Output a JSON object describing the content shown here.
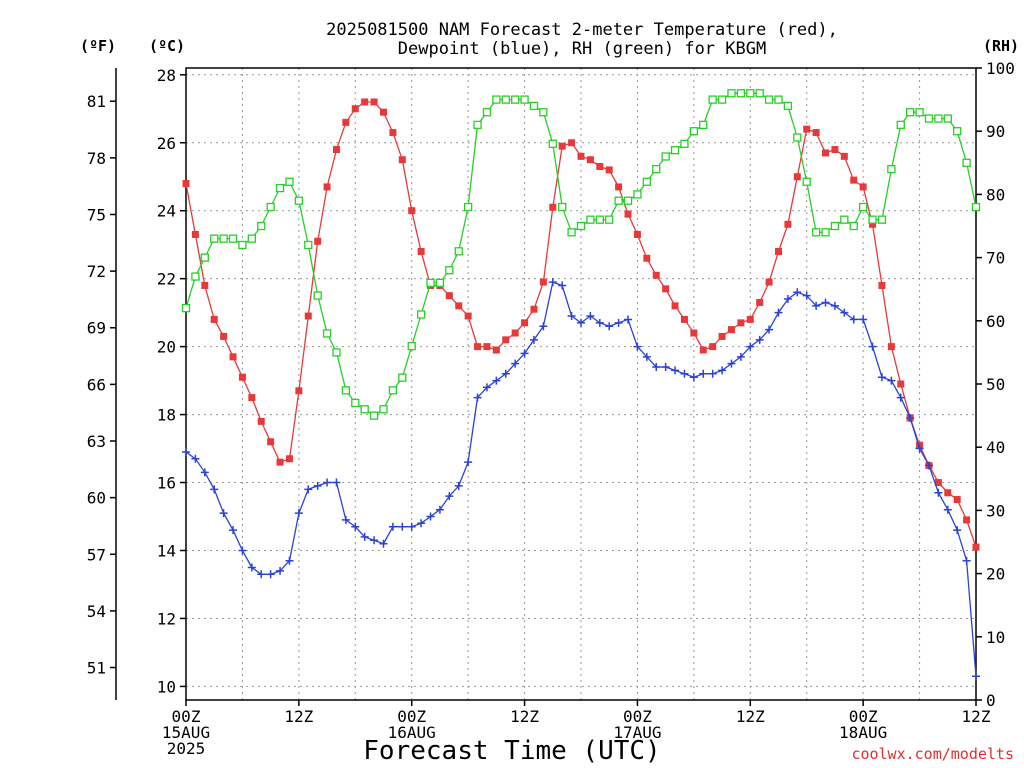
{
  "chart_data": {
    "type": "line",
    "title_lines": [
      "2025081500 NAM Forecast 2-meter Temperature (red),",
      "Dewpoint (blue), RH (green) for KBGM"
    ],
    "xlabel": "Forecast Time (UTC)",
    "credit": "coolwx.com/modelts",
    "unit_labels": {
      "fahrenheit": "(ºF)",
      "celsius": "(ºC)",
      "rh": "(RH)"
    },
    "x_range_hours": [
      0,
      84
    ],
    "x_ticks": [
      {
        "hour": 0,
        "lines": [
          "00Z",
          "15AUG",
          "2025"
        ]
      },
      {
        "hour": 12,
        "lines": [
          "12Z"
        ]
      },
      {
        "hour": 24,
        "lines": [
          "00Z",
          "16AUG"
        ]
      },
      {
        "hour": 36,
        "lines": [
          "12Z"
        ]
      },
      {
        "hour": 48,
        "lines": [
          "00Z",
          "17AUG"
        ]
      },
      {
        "hour": 60,
        "lines": [
          "12Z"
        ]
      },
      {
        "hour": 72,
        "lines": [
          "00Z",
          "18AUG"
        ]
      },
      {
        "hour": 84,
        "lines": [
          "12Z"
        ]
      }
    ],
    "celsius_range": [
      9.6,
      28.2
    ],
    "celsius_ticks": [
      "10",
      "12",
      "14",
      "16",
      "18",
      "20",
      "22",
      "24",
      "26",
      "28"
    ],
    "fahrenheit_ticks": [
      "51",
      "54",
      "57",
      "60",
      "63",
      "66",
      "69",
      "72",
      "75",
      "78",
      "81"
    ],
    "rh_range": [
      0,
      100
    ],
    "rh_ticks": [
      "0",
      "10",
      "20",
      "30",
      "40",
      "50",
      "60",
      "70",
      "80",
      "90",
      "100"
    ],
    "grid": true,
    "series": [
      {
        "name": "Temperature",
        "color": "#e8393a",
        "marker": "filled-square",
        "axis": "celsius",
        "hours": [
          0,
          1,
          2,
          3,
          4,
          5,
          6,
          7,
          8,
          9,
          10,
          11,
          12,
          13,
          14,
          15,
          16,
          17,
          18,
          19,
          20,
          21,
          22,
          23,
          24,
          25,
          26,
          27,
          28,
          29,
          30,
          31,
          32,
          33,
          34,
          35,
          36,
          37,
          38,
          39,
          40,
          41,
          42,
          43,
          44,
          45,
          46,
          47,
          48,
          49,
          50,
          51,
          52,
          53,
          54,
          55,
          56,
          57,
          58,
          59,
          60,
          61,
          62,
          63,
          64,
          65,
          66,
          67,
          68,
          69,
          70,
          71,
          72,
          73,
          74,
          75,
          76,
          77,
          78,
          79,
          80,
          81,
          82,
          83,
          84
        ],
        "values": [
          24.8,
          23.3,
          21.8,
          20.8,
          20.3,
          19.7,
          19.1,
          18.5,
          17.8,
          17.2,
          16.6,
          16.7,
          18.7,
          20.9,
          23.1,
          24.7,
          25.8,
          26.6,
          27.0,
          27.2,
          27.2,
          26.9,
          26.3,
          25.5,
          24.0,
          22.8,
          21.8,
          21.8,
          21.5,
          21.2,
          20.9,
          20.0,
          20.0,
          19.9,
          20.2,
          20.4,
          20.7,
          21.1,
          21.9,
          24.1,
          25.9,
          26.0,
          25.6,
          25.5,
          25.3,
          25.2,
          24.7,
          23.9,
          23.3,
          22.6,
          22.1,
          21.7,
          21.2,
          20.8,
          20.4,
          19.9,
          20.0,
          20.3,
          20.5,
          20.7,
          20.8,
          21.3,
          21.9,
          22.8,
          23.6,
          25.0,
          26.4,
          26.3,
          25.7,
          25.8,
          25.6,
          24.9,
          24.7,
          23.6,
          21.8,
          20.0,
          18.9,
          17.9,
          17.1,
          16.5,
          16.0,
          15.7,
          15.5,
          14.9,
          14.1
        ]
      },
      {
        "name": "Dewpoint",
        "color": "#2a43d6",
        "marker": "plus",
        "axis": "celsius",
        "hours": [
          0,
          1,
          2,
          3,
          4,
          5,
          6,
          7,
          8,
          9,
          10,
          11,
          12,
          13,
          14,
          15,
          16,
          17,
          18,
          19,
          20,
          21,
          22,
          23,
          24,
          25,
          26,
          27,
          28,
          29,
          30,
          31,
          32,
          33,
          34,
          35,
          36,
          37,
          38,
          39,
          40,
          41,
          42,
          43,
          44,
          45,
          46,
          47,
          48,
          49,
          50,
          51,
          52,
          53,
          54,
          55,
          56,
          57,
          58,
          59,
          60,
          61,
          62,
          63,
          64,
          65,
          66,
          67,
          68,
          69,
          70,
          71,
          72,
          73,
          74,
          75,
          76,
          77,
          78,
          79,
          80,
          81,
          82,
          83,
          84
        ],
        "values": [
          16.9,
          16.7,
          16.3,
          15.8,
          15.1,
          14.6,
          14.0,
          13.5,
          13.3,
          13.3,
          13.4,
          13.7,
          15.1,
          15.8,
          15.9,
          16.0,
          16.0,
          14.9,
          14.7,
          14.4,
          14.3,
          14.2,
          14.7,
          14.7,
          14.7,
          14.8,
          15.0,
          15.2,
          15.6,
          15.9,
          16.6,
          18.5,
          18.8,
          19.0,
          19.2,
          19.5,
          19.8,
          20.2,
          20.6,
          21.9,
          21.8,
          20.9,
          20.7,
          20.9,
          20.7,
          20.6,
          20.7,
          20.8,
          20.0,
          19.7,
          19.4,
          19.4,
          19.3,
          19.2,
          19.1,
          19.2,
          19.2,
          19.3,
          19.5,
          19.7,
          20.0,
          20.2,
          20.5,
          21.0,
          21.4,
          21.6,
          21.5,
          21.2,
          21.3,
          21.2,
          21.0,
          20.8,
          20.8,
          20.0,
          19.1,
          19.0,
          18.5,
          17.9,
          17.0,
          16.5,
          15.7,
          15.2,
          14.6,
          13.7,
          10.3
        ]
      },
      {
        "name": "RH",
        "color": "#27cf27",
        "marker": "open-square",
        "axis": "rh",
        "hours": [
          0,
          1,
          2,
          3,
          4,
          5,
          6,
          7,
          8,
          9,
          10,
          11,
          12,
          13,
          14,
          15,
          16,
          17,
          18,
          19,
          20,
          21,
          22,
          23,
          24,
          25,
          26,
          27,
          28,
          29,
          30,
          31,
          32,
          33,
          34,
          35,
          36,
          37,
          38,
          39,
          40,
          41,
          42,
          43,
          44,
          45,
          46,
          47,
          48,
          49,
          50,
          51,
          52,
          53,
          54,
          55,
          56,
          57,
          58,
          59,
          60,
          61,
          62,
          63,
          64,
          65,
          66,
          67,
          68,
          69,
          70,
          71,
          72,
          73,
          74,
          75,
          76,
          77,
          78,
          79,
          80,
          81,
          82,
          83,
          84
        ],
        "values": [
          62,
          67,
          70,
          73,
          73,
          73,
          72,
          73,
          75,
          78,
          81,
          82,
          79,
          72,
          64,
          58,
          55,
          49,
          47,
          46,
          45,
          46,
          49,
          51,
          56,
          61,
          66,
          66,
          68,
          71,
          78,
          91,
          93,
          95,
          95,
          95,
          95,
          94,
          93,
          88,
          78,
          74,
          75,
          76,
          76,
          76,
          79,
          79,
          80,
          82,
          84,
          86,
          87,
          88,
          90,
          91,
          95,
          95,
          96,
          96,
          96,
          96,
          95,
          95,
          94,
          89,
          82,
          74,
          74,
          75,
          76,
          75,
          78,
          76,
          76,
          84,
          91,
          93,
          93,
          92,
          92,
          92,
          90,
          85,
          78
        ]
      }
    ]
  }
}
